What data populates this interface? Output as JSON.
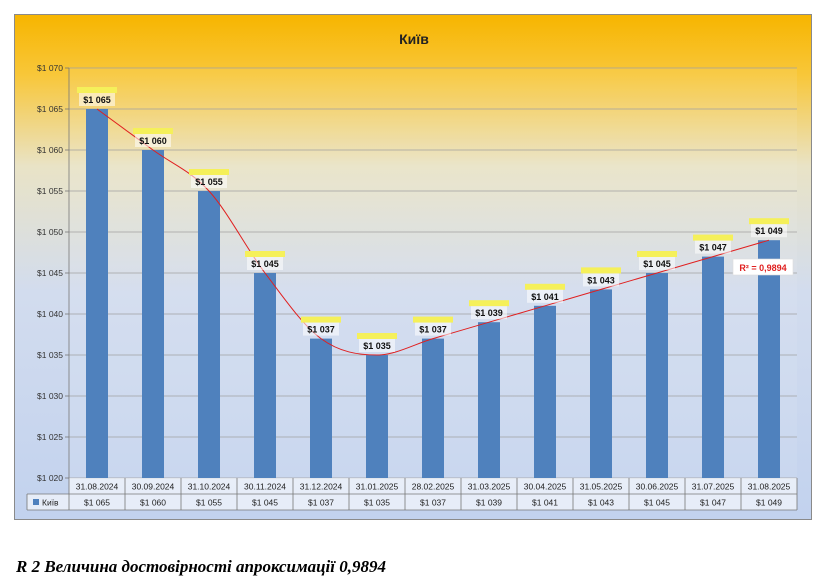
{
  "chart_data": {
    "type": "bar",
    "title": "Київ",
    "categories": [
      "31.08.2024",
      "30.09.2024",
      "31.10.2024",
      "30.11.2024",
      "31.12.2024",
      "31.01.2025",
      "28.02.2025",
      "31.03.2025",
      "30.04.2025",
      "31.05.2025",
      "30.06.2025",
      "31.07.2025",
      "31.08.2025"
    ],
    "series": [
      {
        "name": "Київ",
        "values": [
          1065,
          1060,
          1055,
          1045,
          1037,
          1035,
          1037,
          1039,
          1041,
          1043,
          1045,
          1047,
          1049
        ],
        "value_labels": [
          "$1 065",
          "$1 060",
          "$1 055",
          "$1 045",
          "$1 037",
          "$1 035",
          "$1 037",
          "$1 039",
          "$1 041",
          "$1 043",
          "$1 045",
          "$1 047",
          "$1 049"
        ],
        "color": "#4f81bd"
      }
    ],
    "ylim": [
      1020,
      1070
    ],
    "yticks": [
      1020,
      1025,
      1030,
      1035,
      1040,
      1045,
      1050,
      1055,
      1060,
      1065,
      1070
    ],
    "ytick_labels": [
      "$1 020",
      "$1 025",
      "$1 030",
      "$1 035",
      "$1 040",
      "$1 045",
      "$1 050",
      "$1 055",
      "$1 060",
      "$1 065",
      "$1 070"
    ],
    "grid": true,
    "trendline": {
      "type": "polynomial",
      "color": "#e02020",
      "r2_label": "R² = 0,9894"
    },
    "data_table": true,
    "label_highlight_color": "#f5f05a"
  },
  "caption": "R 2 Величина достовірності апроксимації 0,9894"
}
